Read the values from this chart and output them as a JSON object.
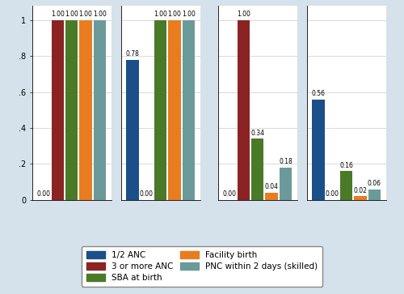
{
  "clusters": [
    1,
    2,
    3,
    4
  ],
  "categories": [
    "1/2 ANC",
    "3 or more ANC",
    "SBA at birth",
    "Facility birth",
    "PNC within 2 days (skilled)"
  ],
  "colors": [
    "#1B4F8A",
    "#8B2323",
    "#4A7A28",
    "#E87C1E",
    "#6B9A9A"
  ],
  "values": [
    [
      0.0,
      1.0,
      1.0,
      1.0,
      1.0
    ],
    [
      0.78,
      0.0,
      1.0,
      1.0,
      1.0
    ],
    [
      0.0,
      1.0,
      0.34,
      0.04,
      0.18
    ],
    [
      0.56,
      0.0,
      0.16,
      0.02,
      0.06
    ]
  ],
  "bar_labels": [
    [
      "0.00",
      "1.00",
      "1.00",
      "1.00",
      "1.00"
    ],
    [
      "0.78",
      "0.00",
      "1.00",
      "1.00",
      "1.00"
    ],
    [
      "0.00",
      "1.00",
      "0.34",
      "0.04",
      "0.18"
    ],
    [
      "0.56",
      "0.00",
      "0.16",
      "0.02",
      "0.06"
    ]
  ],
  "label_show_top": [
    [
      false,
      true,
      true,
      true,
      true
    ],
    [
      true,
      false,
      true,
      true,
      true
    ],
    [
      false,
      true,
      true,
      true,
      true
    ],
    [
      true,
      false,
      true,
      true,
      true
    ]
  ],
  "label_show_bottom": [
    [
      true,
      false,
      false,
      false,
      false
    ],
    [
      false,
      true,
      false,
      false,
      false
    ],
    [
      true,
      false,
      false,
      false,
      false
    ],
    [
      false,
      true,
      false,
      false,
      false
    ]
  ],
  "ylim": [
    0,
    1.08
  ],
  "yticks": [
    0,
    0.2,
    0.4,
    0.6,
    0.8,
    1.0
  ],
  "ytick_labels": [
    "0",
    ".2",
    ".4",
    ".6",
    ".8",
    "1"
  ],
  "background_color": "#D5E2EC",
  "plot_background": "#FFFFFF",
  "legend_labels_col1": [
    "1/2 ANC",
    "SBA at birth",
    "PNC within 2 days (skilled)"
  ],
  "legend_labels_col2": [
    "3 or more ANC",
    "Facility birth"
  ],
  "legend_colors_col1": [
    "#1B4F8A",
    "#4A7A28",
    "#6B9A9A"
  ],
  "legend_colors_col2": [
    "#8B2323",
    "#E87C1E"
  ],
  "bar_width": 0.13,
  "fontsize_bar_label": 5.5,
  "fontsize_axis": 7,
  "fontsize_legend": 7.5
}
